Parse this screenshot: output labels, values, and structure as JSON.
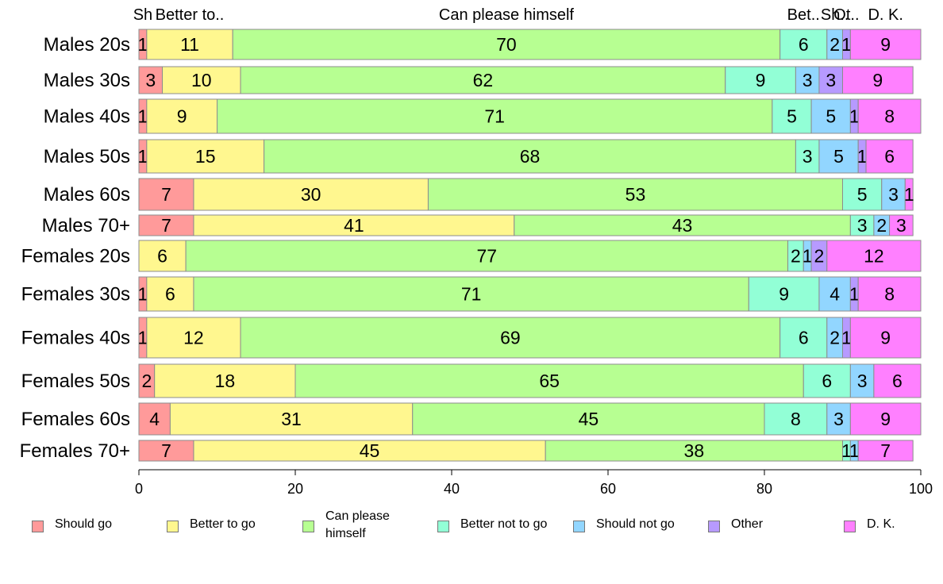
{
  "chart_data": {
    "type": "bar",
    "orientation": "horizontal",
    "stacked": true,
    "xlim": [
      0,
      100
    ],
    "xticks": [
      "0",
      "20",
      "40",
      "60",
      "80",
      "100"
    ],
    "categories": [
      "Males 20s",
      "Males 30s",
      "Males 40s",
      "Males 50s",
      "Males 60s",
      "Males 70+",
      "Females 20s",
      "Females 30s",
      "Females 40s",
      "Females 50s",
      "Females 60s",
      "Females 70+"
    ],
    "top_labels": [
      "Sh",
      "Better to..",
      "Can please himself",
      "Bet..",
      "Sh..",
      "Ot..",
      "D. K."
    ],
    "series": [
      {
        "name": "Should go",
        "color": "#ff9a9a",
        "values": [
          1,
          3,
          1,
          1,
          7,
          7,
          0,
          1,
          1,
          2,
          4,
          7
        ],
        "labels": [
          "1",
          "3",
          "1",
          "1",
          "7",
          "7",
          "",
          "1",
          "1",
          "2",
          "4",
          "7"
        ]
      },
      {
        "name": "Better to go",
        "color": "#fff78f",
        "values": [
          11,
          10,
          9,
          15,
          30,
          41,
          6,
          6,
          12,
          18,
          31,
          45
        ],
        "labels": [
          "11",
          "10",
          "9",
          "15",
          "30",
          "41",
          "6",
          "6",
          "12",
          "18",
          "31",
          "45"
        ]
      },
      {
        "name": "Can please himself",
        "color": "#b7ff92",
        "values": [
          70,
          62,
          71,
          68,
          53,
          43,
          77,
          71,
          69,
          65,
          45,
          38
        ],
        "labels": [
          "70",
          "62",
          "71",
          "68",
          "53",
          "43",
          "77",
          "71",
          "69",
          "65",
          "45",
          "38"
        ]
      },
      {
        "name": "Better not to go",
        "color": "#92ffd6",
        "values": [
          6,
          9,
          5,
          3,
          5,
          3,
          2,
          9,
          6,
          6,
          8,
          1
        ],
        "labels": [
          "6",
          "9",
          "5",
          "3",
          "5",
          "3",
          "2",
          "9",
          "6",
          "6",
          "8",
          "1"
        ]
      },
      {
        "name": "Should not go",
        "color": "#92d6ff",
        "values": [
          2,
          3,
          5,
          5,
          3,
          2,
          1,
          4,
          2,
          3,
          3,
          1
        ],
        "labels": [
          "2",
          "3",
          "5",
          "5",
          "3",
          "2",
          "1",
          "4",
          "2",
          "3",
          "3",
          "1"
        ]
      },
      {
        "name": "Other",
        "color": "#b79aff",
        "values": [
          1,
          3,
          1,
          1,
          0,
          0,
          2,
          1,
          1,
          0,
          0,
          0
        ],
        "labels": [
          "1",
          "3",
          "1",
          "1",
          "",
          "",
          "2",
          "1",
          "1",
          "",
          "",
          ""
        ]
      },
      {
        "name": "D. K.",
        "color": "#ff80ff",
        "values": [
          9,
          9,
          8,
          6,
          1,
          3,
          12,
          8,
          9,
          6,
          9,
          7
        ],
        "labels": [
          "9",
          "9",
          "8",
          "6",
          "1",
          "3",
          "12",
          "8",
          "9",
          "6",
          "9",
          "7"
        ]
      }
    ]
  },
  "legend": [
    {
      "label": "Should go",
      "color": "#ff9a9a"
    },
    {
      "label": "Better to go",
      "color": "#fff78f"
    },
    {
      "label": "Can please himself",
      "color": "#b7ff92"
    },
    {
      "label": "Better not to go",
      "color": "#92ffd6"
    },
    {
      "label": "Should not go",
      "color": "#92d6ff"
    },
    {
      "label": "Other",
      "color": "#b79aff"
    },
    {
      "label": "D. K.",
      "color": "#ff80ff"
    }
  ]
}
